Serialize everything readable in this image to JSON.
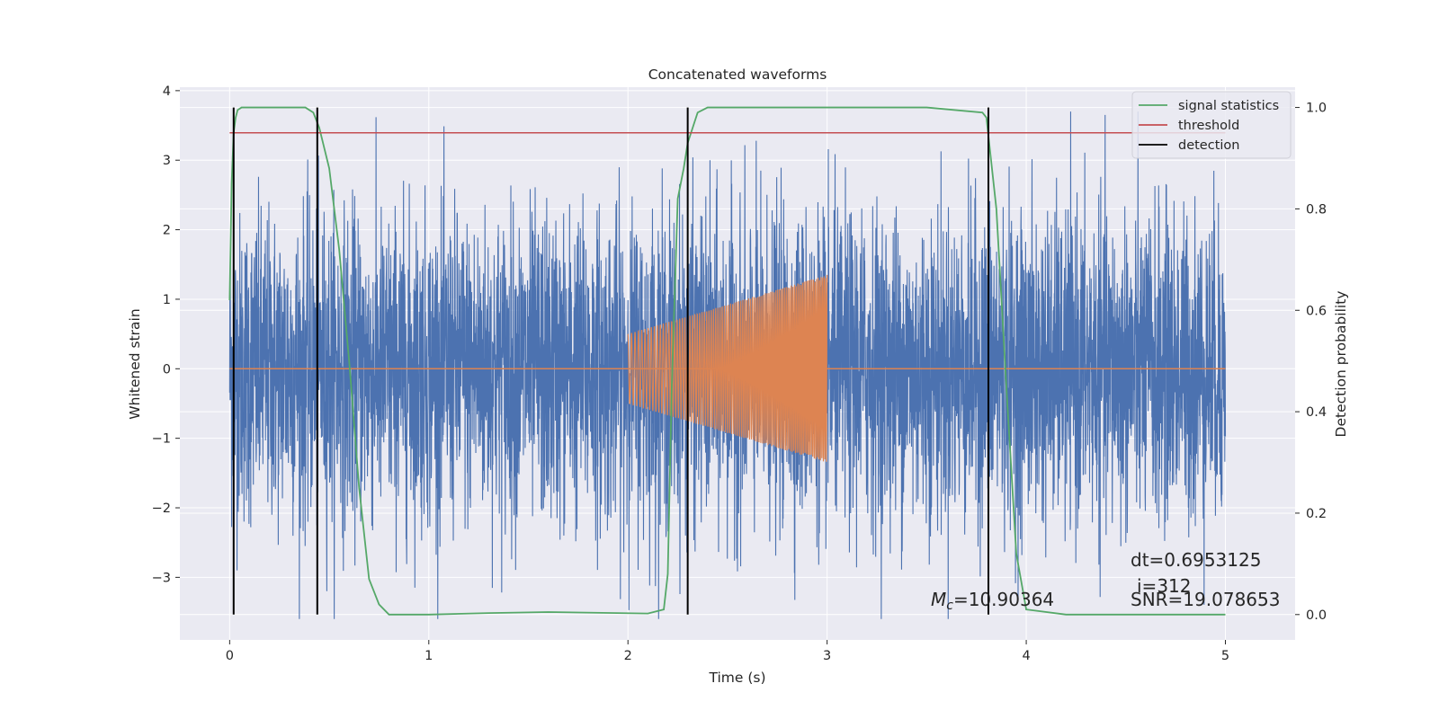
{
  "chart_data": {
    "type": "line",
    "title": "Concatenated waveforms",
    "xlabel": "Time (s)",
    "ylabel": "Whitened strain",
    "y2label": "Detection probability",
    "xlim": [
      -0.25,
      5.35
    ],
    "ylim": [
      -3.9,
      4.05
    ],
    "y2lim": [
      -0.05,
      1.04
    ],
    "x_ticks": [
      0,
      1,
      2,
      3,
      4,
      5
    ],
    "y_ticks": [
      -3,
      -2,
      -1,
      0,
      1,
      2,
      3,
      4
    ],
    "y2_ticks": [
      0.0,
      0.2,
      0.4,
      0.6,
      0.8,
      1.0
    ],
    "x_tick_labels": [
      "0",
      "1",
      "2",
      "3",
      "4",
      "5"
    ],
    "y_tick_labels": [
      "−3",
      "−2",
      "−1",
      "0",
      "1",
      "2",
      "3",
      "4"
    ],
    "y2_tick_labels": [
      "0.0",
      "0.2",
      "0.4",
      "0.6",
      "0.8",
      "1.0"
    ],
    "grid": true,
    "legend_position": "top-right",
    "colors": {
      "background": "#eaeaf2",
      "grid": "#ffffff",
      "strain": "#4c72b0",
      "template": "#dd8452",
      "statistics": "#55a868",
      "threshold": "#c44e52",
      "detection": "#000000"
    },
    "series": [
      {
        "key": "strain",
        "description_of_values": "dense whitened noise, mostly within -2.5..2.8, peaks near 3.7 and -3.6",
        "x_range": [
          0,
          5
        ],
        "amplitude_typical": 1.3,
        "peak_max": 3.7,
        "peak_min": -3.6
      },
      {
        "key": "template",
        "x_range": [
          2,
          3
        ],
        "envelope_start": 0.5,
        "envelope_end": 1.35,
        "baseline": 0,
        "baseline_x_range": [
          0,
          5
        ]
      },
      {
        "name": "signal statistics",
        "axis": "right",
        "x": [
          0.0,
          0.01,
          0.02,
          0.03,
          0.04,
          0.06,
          0.1,
          0.2,
          0.38,
          0.42,
          0.45,
          0.5,
          0.55,
          0.6,
          0.65,
          0.7,
          0.75,
          0.8,
          1.0,
          1.3,
          1.6,
          2.1,
          2.18,
          2.2,
          2.22,
          2.25,
          2.28,
          2.3,
          2.35,
          2.4,
          2.5,
          3.0,
          3.5,
          3.78,
          3.8,
          3.85,
          3.9,
          3.95,
          4.0,
          4.2,
          5.0
        ],
        "y": [
          0.62,
          0.85,
          0.95,
          0.98,
          0.995,
          1.0,
          1.0,
          1.0,
          1.0,
          0.99,
          0.96,
          0.88,
          0.72,
          0.5,
          0.25,
          0.07,
          0.02,
          0.0,
          0.0,
          0.003,
          0.005,
          0.002,
          0.01,
          0.08,
          0.45,
          0.82,
          0.88,
          0.93,
          0.99,
          1.0,
          1.0,
          1.0,
          1.0,
          0.99,
          0.98,
          0.8,
          0.45,
          0.12,
          0.01,
          0.0,
          0.0
        ]
      },
      {
        "name": "threshold",
        "axis": "right",
        "x": [
          0,
          5
        ],
        "y": [
          0.95,
          0.95
        ]
      },
      {
        "name": "detection",
        "axis": "right",
        "type": "vlines",
        "x": [
          0.02,
          0.44,
          2.3,
          3.81
        ],
        "y_range": [
          0.0,
          1.0
        ]
      }
    ],
    "legend": [
      "signal statistics",
      "threshold",
      "detection"
    ],
    "annotations": {
      "mc_prefix": "M",
      "mc_sub": "c",
      "mc_value": "=10.90364",
      "dt": "dt=0.6953125",
      "i": "i=312",
      "snr": "SNR=19.078653"
    }
  }
}
